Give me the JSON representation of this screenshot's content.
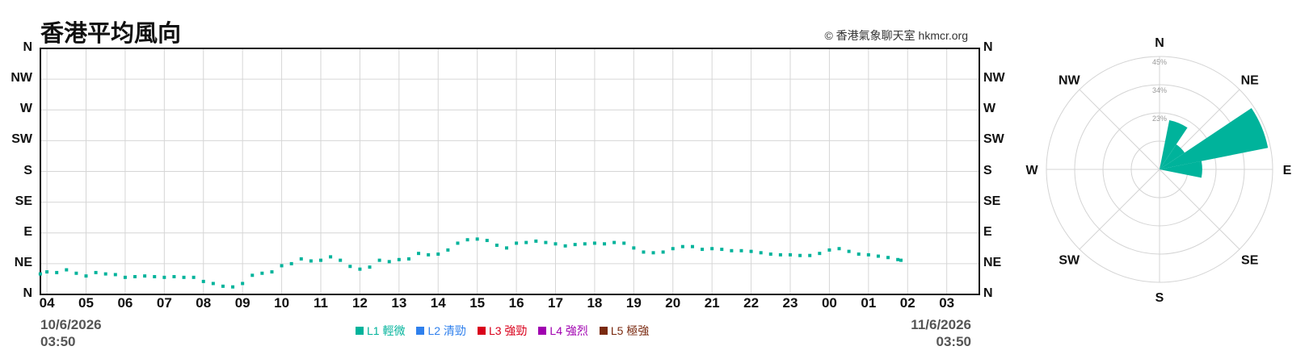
{
  "title": "香港平均風向",
  "credit": "© 香港氣象聊天室 hkmcr.org",
  "start_stamp": {
    "date": "10/6/2026",
    "time": "03:50"
  },
  "end_stamp": {
    "date": "11/6/2026",
    "time": "03:50"
  },
  "legend": [
    {
      "label": "L1 輕微",
      "color": "#00b39b"
    },
    {
      "label": "L2 清勁",
      "color": "#2f80ed"
    },
    {
      "label": "L3 強勁",
      "color": "#d9001b"
    },
    {
      "label": "L4 強烈",
      "color": "#a000b0"
    },
    {
      "label": "L5 極強",
      "color": "#7a2a10"
    }
  ],
  "chart_data": [
    {
      "type": "scatter",
      "title": "香港平均風向",
      "xlabel": "",
      "ylabel": "",
      "y_categories": [
        "N",
        "NE",
        "E",
        "SE",
        "S",
        "SW",
        "W",
        "NW",
        "N"
      ],
      "x_ticks": [
        "04",
        "05",
        "06",
        "07",
        "08",
        "09",
        "10",
        "11",
        "12",
        "13",
        "14",
        "15",
        "16",
        "17",
        "18",
        "19",
        "20",
        "21",
        "22",
        "23",
        "00",
        "01",
        "02",
        "03"
      ],
      "x_range": [
        "10/6/2026 03:50",
        "11/6/2026 03:50"
      ],
      "grid": true,
      "series": [
        {
          "name": "L1 輕微",
          "color": "#00b39b",
          "points": [
            [
              3.83,
              30
            ],
            [
              4.0,
              33
            ],
            [
              4.25,
              32
            ],
            [
              4.5,
              36
            ],
            [
              4.75,
              31
            ],
            [
              5.0,
              27
            ],
            [
              5.25,
              32
            ],
            [
              5.5,
              30
            ],
            [
              5.75,
              29
            ],
            [
              6.0,
              25
            ],
            [
              6.25,
              26
            ],
            [
              6.5,
              27
            ],
            [
              6.75,
              26
            ],
            [
              7.0,
              25
            ],
            [
              7.25,
              26
            ],
            [
              7.5,
              25
            ],
            [
              7.75,
              25
            ],
            [
              8.0,
              19
            ],
            [
              8.25,
              16
            ],
            [
              8.5,
              12
            ],
            [
              8.75,
              11
            ],
            [
              9.0,
              16
            ],
            [
              9.25,
              28
            ],
            [
              9.5,
              31
            ],
            [
              9.75,
              33
            ],
            [
              10.0,
              42
            ],
            [
              10.25,
              45
            ],
            [
              10.5,
              52
            ],
            [
              10.75,
              49
            ],
            [
              11.0,
              50
            ],
            [
              11.25,
              55
            ],
            [
              11.5,
              50
            ],
            [
              11.75,
              41
            ],
            [
              12.0,
              37
            ],
            [
              12.25,
              40
            ],
            [
              12.5,
              50
            ],
            [
              12.75,
              48
            ],
            [
              13.0,
              51
            ],
            [
              13.25,
              52
            ],
            [
              13.5,
              60
            ],
            [
              13.75,
              58
            ],
            [
              14.0,
              59
            ],
            [
              14.25,
              65
            ],
            [
              14.5,
              75
            ],
            [
              14.75,
              80
            ],
            [
              15.0,
              81
            ],
            [
              15.25,
              79
            ],
            [
              15.5,
              72
            ],
            [
              15.75,
              68
            ],
            [
              16.0,
              75
            ],
            [
              16.25,
              76
            ],
            [
              16.5,
              78
            ],
            [
              16.75,
              76
            ],
            [
              17.0,
              74
            ],
            [
              17.25,
              71
            ],
            [
              17.5,
              73
            ],
            [
              17.75,
              74
            ],
            [
              18.0,
              75
            ],
            [
              18.25,
              74
            ],
            [
              18.5,
              76
            ],
            [
              18.75,
              75
            ],
            [
              19.0,
              68
            ],
            [
              19.25,
              62
            ],
            [
              19.5,
              61
            ],
            [
              19.75,
              62
            ],
            [
              20.0,
              67
            ],
            [
              20.25,
              70
            ],
            [
              20.5,
              70
            ],
            [
              20.75,
              66
            ],
            [
              21.0,
              67
            ],
            [
              21.25,
              66
            ],
            [
              21.5,
              64
            ],
            [
              21.75,
              64
            ],
            [
              22.0,
              63
            ],
            [
              22.25,
              61
            ],
            [
              22.5,
              59
            ],
            [
              22.75,
              58
            ],
            [
              23.0,
              58
            ],
            [
              23.25,
              57
            ],
            [
              23.5,
              57
            ],
            [
              23.75,
              60
            ],
            [
              24.0,
              65
            ],
            [
              24.25,
              67
            ],
            [
              24.5,
              63
            ],
            [
              24.75,
              59
            ],
            [
              25.0,
              58
            ],
            [
              25.25,
              56
            ],
            [
              25.5,
              54
            ],
            [
              25.75,
              51
            ],
            [
              25.83,
              50
            ]
          ]
        }
      ]
    },
    {
      "type": "polar-bar",
      "title": "",
      "directions": [
        "N",
        "NE",
        "E",
        "SE",
        "S",
        "SW",
        "W",
        "NW"
      ],
      "radial_ticks": [
        "23%",
        "34%",
        "45%"
      ],
      "radial_max": 45,
      "series": [
        {
          "name": "L1 輕微",
          "color": "#00b39b",
          "sectors": [
            {
              "bearing_deg": 22.5,
              "value": 20
            },
            {
              "bearing_deg": 45,
              "value": 12
            },
            {
              "bearing_deg": 67.5,
              "value": 44
            },
            {
              "bearing_deg": 90,
              "value": 17
            }
          ]
        }
      ]
    }
  ]
}
